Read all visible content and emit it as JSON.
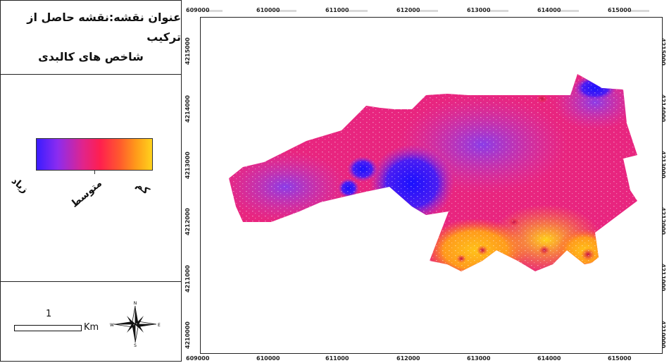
{
  "legend": {
    "title_line1": "عنوان نقشه:نقشه حاصل از ترکیب",
    "title_line2": "شاخص های کالبدی",
    "ramp_labels": {
      "high": "زیاد",
      "medium": "متوسط",
      "low": "کم"
    },
    "ramp_colors": [
      "#3a1cff",
      "#e0248c",
      "#ff1f4f",
      "#ff9a1a",
      "#ffd21c"
    ],
    "scale_number": "1",
    "scale_unit": "Km",
    "compass": {
      "n": "N",
      "s": "S",
      "e": "E",
      "w": "W"
    }
  },
  "map": {
    "x_ticks": [
      "609000",
      "610000",
      "611000",
      "612000",
      "613000",
      "614000",
      "615000"
    ],
    "y_ticks": [
      "4215000",
      "4214000",
      "4213000",
      "4212000",
      "4211000",
      "4210000"
    ]
  }
}
